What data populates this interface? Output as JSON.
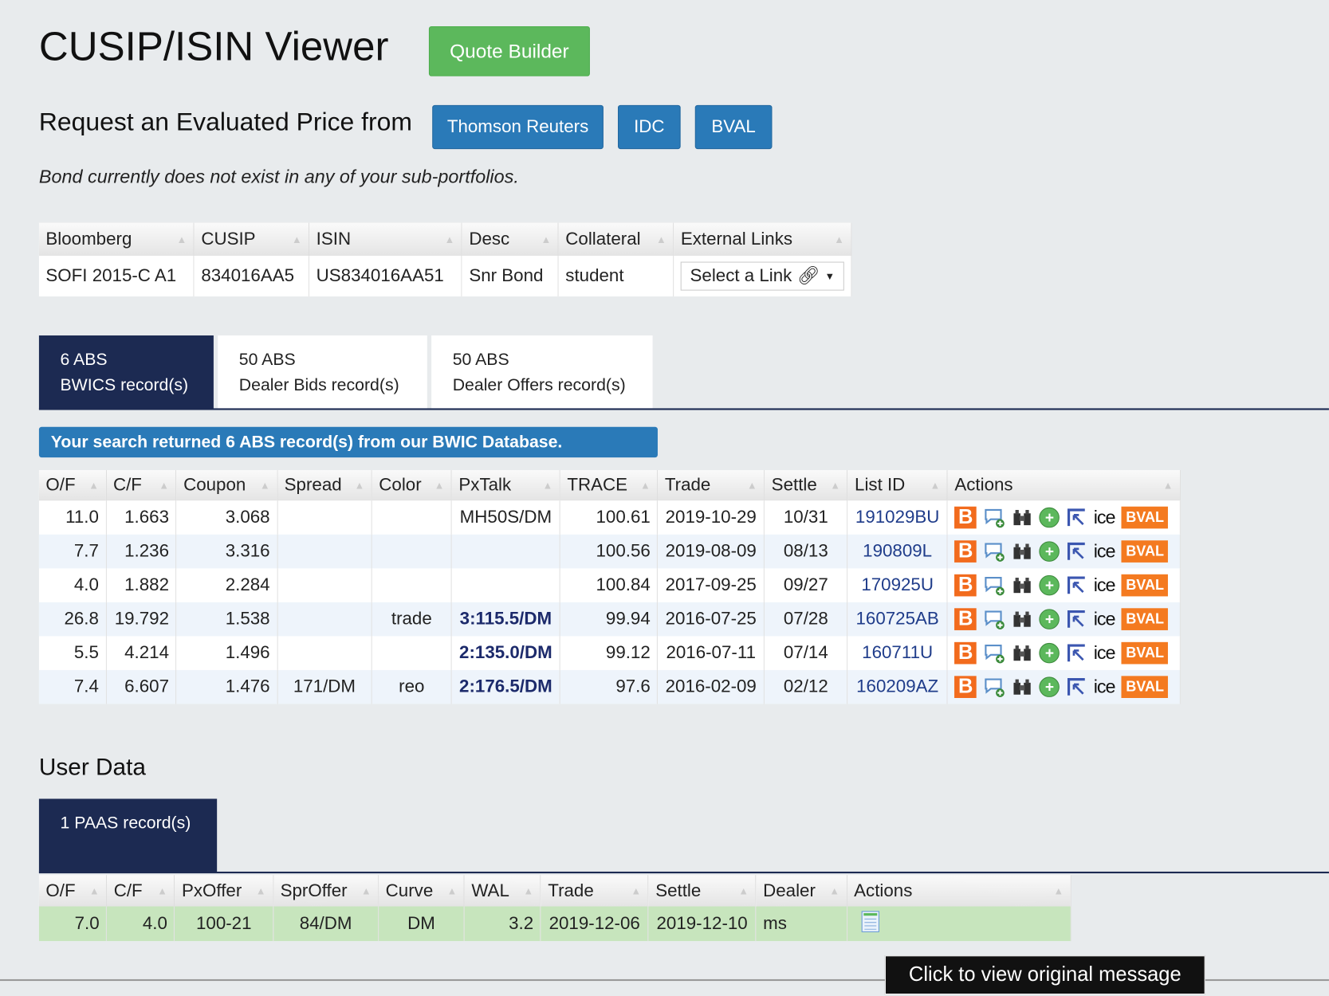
{
  "header": {
    "title": "CUSIP/ISIN Viewer",
    "quote_builder": "Quote Builder"
  },
  "request": {
    "label": "Request an Evaluated Price from",
    "sources": [
      "Thomson Reuters",
      "IDC",
      "BVAL"
    ]
  },
  "notice": "Bond currently does not exist in any of your sub-portfolios.",
  "bond_table": {
    "columns": [
      "Bloomberg",
      "CUSIP",
      "ISIN",
      "Desc",
      "Collateral",
      "External Links"
    ],
    "row": [
      "SOFI 2015-C A1",
      "834016AA5",
      "US834016AA51",
      "Snr Bond",
      "student"
    ],
    "select_link": "Select a Link"
  },
  "tabs": [
    {
      "line1": "6 ABS",
      "line2": "BWICS record(s)",
      "active": true
    },
    {
      "line1": "50 ABS",
      "line2": "Dealer Bids record(s)",
      "active": false
    },
    {
      "line1": "50 ABS",
      "line2": "Dealer Offers record(s)",
      "active": false
    }
  ],
  "banner": "Your search returned 6 ABS record(s) from our BWIC Database.",
  "bwic_table": {
    "columns": [
      "O/F",
      "C/F",
      "Coupon",
      "Spread",
      "Color",
      "PxTalk",
      "TRACE",
      "Trade",
      "Settle",
      "List ID",
      "Actions"
    ],
    "rows": [
      [
        "11.0",
        "1.663",
        "3.068",
        "",
        "",
        "MH50S/DM",
        "100.61",
        "2019-10-29",
        "10/31",
        "191029BU"
      ],
      [
        "7.7",
        "1.236",
        "3.316",
        "",
        "",
        "",
        "100.56",
        "2019-08-09",
        "08/13",
        "190809L"
      ],
      [
        "4.0",
        "1.882",
        "2.284",
        "",
        "",
        "",
        "100.84",
        "2017-09-25",
        "09/27",
        "170925U"
      ],
      [
        "26.8",
        "19.792",
        "1.538",
        "",
        "trade",
        "3:115.5/DM",
        "99.94",
        "2016-07-25",
        "07/28",
        "160725AB"
      ],
      [
        "5.5",
        "4.214",
        "1.496",
        "",
        "",
        "2:135.0/DM",
        "99.12",
        "2016-07-11",
        "07/14",
        "160711U"
      ],
      [
        "7.4",
        "6.607",
        "1.476",
        "171/DM",
        "reo",
        "2:176.5/DM",
        "97.6",
        "2016-02-09",
        "02/12",
        "160209AZ"
      ]
    ],
    "action_icons": [
      "bloomberg-icon",
      "comment-add-icon",
      "binoculars-icon",
      "add-circle-icon",
      "cursor-arrow-icon",
      "ice-logo",
      "bval-logo"
    ],
    "ice_label": "ice",
    "bval_label": "BVAL",
    "b_label": "B"
  },
  "user_data": {
    "title": "User Data",
    "tab": "1 PAAS record(s)",
    "columns": [
      "O/F",
      "C/F",
      "PxOffer",
      "SprOffer",
      "Curve",
      "WAL",
      "Trade",
      "Settle",
      "Dealer",
      "Actions"
    ],
    "row": [
      "7.0",
      "4.0",
      "100-21",
      "84/DM",
      "DM",
      "3.2",
      "2019-12-06",
      "2019-12-10",
      "ms"
    ],
    "row_color": "#c7e5bd"
  },
  "tooltip": "Click to view original message",
  "colors": {
    "navy": "#1c2a52",
    "blue": "#2a7ab8",
    "green": "#5cb85c",
    "orange": "#f47a20"
  }
}
